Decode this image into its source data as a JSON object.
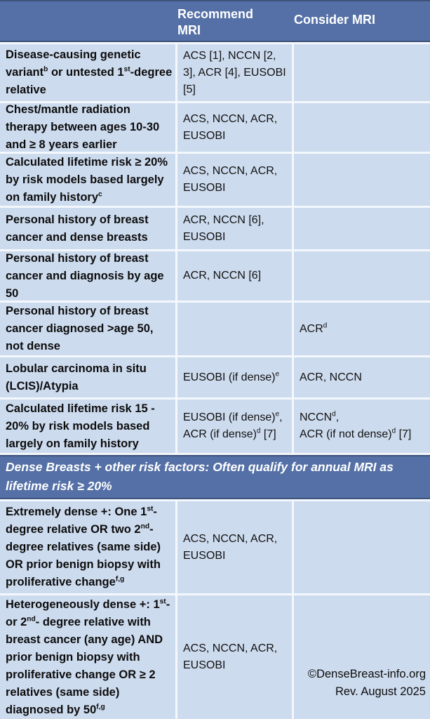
{
  "header": {
    "recommend": "Recommend MRI",
    "consider": "Consider MRI"
  },
  "rows": [
    {
      "risk": "Disease-causing genetic variant^{b} or untested 1^{st}-degree relative",
      "recommend": "ACS [1], NCCN [2, 3], ACR [4], EUSOBI [5]",
      "consider": ""
    },
    {
      "risk": "Chest/mantle radiation therapy between ages 10-30 and ≥ 8 years earlier",
      "recommend": "ACS, NCCN, ACR, EUSOBI",
      "consider": ""
    },
    {
      "risk": "Calculated lifetime risk ≥ 20% by risk models based largely on family history^{c}",
      "recommend": "ACS, NCCN, ACR, EUSOBI",
      "consider": ""
    },
    {
      "risk": "Personal history of breast cancer and dense breasts",
      "recommend": "ACR, NCCN [6], EUSOBI",
      "consider": ""
    },
    {
      "risk": "Personal history of breast cancer and diagnosis by age 50",
      "recommend": "ACR, NCCN [6]",
      "consider": ""
    },
    {
      "risk": "Personal history of breast cancer diagnosed >age 50, not dense",
      "recommend": "",
      "consider": "ACR^{d}"
    },
    {
      "risk": "Lobular carcinoma in situ (LCIS)/Atypia",
      "recommend": "EUSOBI (if dense)^{e}",
      "consider": "ACR, NCCN"
    },
    {
      "risk": "Calculated lifetime risk 15 - 20% by risk models based largely on family history",
      "recommend": "EUSOBI (if dense)^{e},\nACR (if dense)^{d} [7]",
      "consider": "NCCN^{d},\nACR (if not dense)^{d} [7]"
    }
  ],
  "section_divider": "Dense Breasts + other risk factors: Often qualify for annual MRI as\nlifetime risk ≥ 20%",
  "dense_rows": [
    {
      "risk": "Extremely dense +: One 1^{st}- degree relative OR two 2^{nd}- degree relatives (same side) OR prior benign biopsy with proliferative change^{f,g}",
      "recommend": "ACS, NCCN, ACR, EUSOBI",
      "consider": ""
    },
    {
      "risk": "Heterogeneously dense +: 1^{st}- or 2^{nd}- degree relative with breast cancer (any age) AND prior benign biopsy with proliferative change OR ≥ 2 relatives (same side) diagnosed by 50^{f,g}",
      "recommend": "ACS, NCCN, ACR, EUSOBI",
      "consider": ""
    }
  ],
  "footer": {
    "credit": "©DenseBreast-info.org",
    "revision": "Rev. August 2025"
  },
  "colors": {
    "band_bg": "#5470a6",
    "band_edge": "#3e527a",
    "band_text": "#ffffff",
    "cell_bg": "#cddbee",
    "grid_line": "#f4f8fc",
    "body_text": "#111111"
  }
}
